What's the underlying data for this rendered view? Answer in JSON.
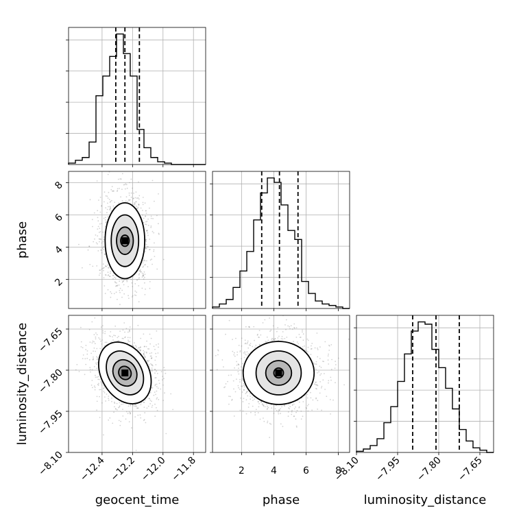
{
  "chart_data": {
    "type": "corner",
    "parameters": [
      {
        "name": "geocent_time",
        "label": "geocent_time",
        "range": [
          -12.62,
          -11.72
        ],
        "ticks": [
          -12.4,
          -12.2,
          -12.0,
          -11.8
        ],
        "tick_labels": [
          "−12.4",
          "−12.2",
          "−12.0",
          "−11.8"
        ]
      },
      {
        "name": "phase",
        "label": "phase",
        "range": [
          0.2,
          8.7
        ],
        "ticks": [
          2,
          4,
          6,
          8
        ],
        "tick_labels": [
          "2",
          "4",
          "6",
          "8"
        ]
      },
      {
        "name": "luminosity_distance",
        "label": "luminosity_distance",
        "range": [
          -8.1,
          -7.6
        ],
        "ticks": [
          -8.1,
          -7.95,
          -7.8,
          -7.65
        ],
        "tick_labels": [
          "−8.10",
          "−7.95",
          "−7.80",
          "−7.65"
        ]
      }
    ],
    "histograms": [
      {
        "parameter": "geocent_time",
        "bin_edges": [
          -12.62,
          -12.575,
          -12.53,
          -12.485,
          -12.44,
          -12.395,
          -12.35,
          -12.305,
          -12.26,
          -12.215,
          -12.17,
          -12.125,
          -12.08,
          -12.035,
          -11.99,
          -11.945,
          -11.9,
          -11.855,
          -11.81,
          -11.765,
          -11.72
        ],
        "counts": [
          1,
          3,
          5,
          16,
          49,
          63,
          77,
          93,
          79,
          63,
          25,
          12,
          5,
          2,
          1,
          0,
          0,
          0,
          0,
          0
        ],
        "quantiles": [
          -12.31,
          -12.25,
          -12.155
        ]
      },
      {
        "parameter": "phase",
        "bin_edges": [
          0.2,
          0.625,
          1.05,
          1.475,
          1.9,
          2.325,
          2.75,
          3.175,
          3.6,
          4.025,
          4.45,
          4.875,
          5.3,
          5.725,
          6.15,
          6.575,
          7.0,
          7.425,
          7.85,
          8.275,
          8.7
        ],
        "counts": [
          1,
          3,
          6,
          14,
          25,
          38,
          59,
          77,
          87,
          84,
          69,
          52,
          46,
          18,
          10,
          5,
          3,
          2,
          1,
          0
        ],
        "quantiles": [
          3.25,
          4.35,
          5.5
        ]
      },
      {
        "parameter": "luminosity_distance",
        "bin_edges": [
          -8.1,
          -8.075,
          -8.05,
          -8.025,
          -8.0,
          -7.975,
          -7.95,
          -7.925,
          -7.9,
          -7.875,
          -7.85,
          -7.825,
          -7.8,
          -7.775,
          -7.75,
          -7.725,
          -7.7,
          -7.675,
          -7.65,
          -7.625,
          -7.6
        ],
        "counts": [
          0.5,
          1.5,
          3,
          6,
          13,
          20,
          31,
          43,
          53,
          57,
          56,
          45,
          37,
          28,
          19,
          10,
          5,
          2,
          1,
          0
        ],
        "quantiles": [
          -7.895,
          -7.81,
          -7.725
        ]
      }
    ],
    "joint": [
      {
        "x": "geocent_time",
        "y": "phase",
        "center": [
          -12.25,
          4.4
        ],
        "contours": [
          {
            "rx": 0.028,
            "ry": 0.35
          },
          {
            "rx": 0.055,
            "ry": 0.85
          },
          {
            "rx": 0.09,
            "ry": 1.6
          },
          {
            "rx": 0.13,
            "ry": 2.35
          }
        ]
      },
      {
        "x": "geocent_time",
        "y": "luminosity_distance",
        "center": [
          -12.25,
          -7.81
        ],
        "rotation_deg": -30,
        "contours": [
          {
            "rx": 0.04,
            "ry": 0.025
          },
          {
            "rx": 0.075,
            "ry": 0.05
          },
          {
            "rx": 0.11,
            "ry": 0.085
          },
          {
            "rx": 0.155,
            "ry": 0.12
          }
        ]
      },
      {
        "x": "phase",
        "y": "luminosity_distance",
        "center": [
          4.3,
          -7.81
        ],
        "contours": [
          {
            "rx": 0.3,
            "ry": 0.018
          },
          {
            "rx": 0.8,
            "ry": 0.045
          },
          {
            "rx": 1.4,
            "ry": 0.08
          },
          {
            "rx": 2.2,
            "ry": 0.115
          }
        ]
      }
    ],
    "grid": true,
    "colors": {
      "lines": "#000000",
      "samples": "#7f7f7f",
      "grid": "#b0b0b0"
    }
  }
}
